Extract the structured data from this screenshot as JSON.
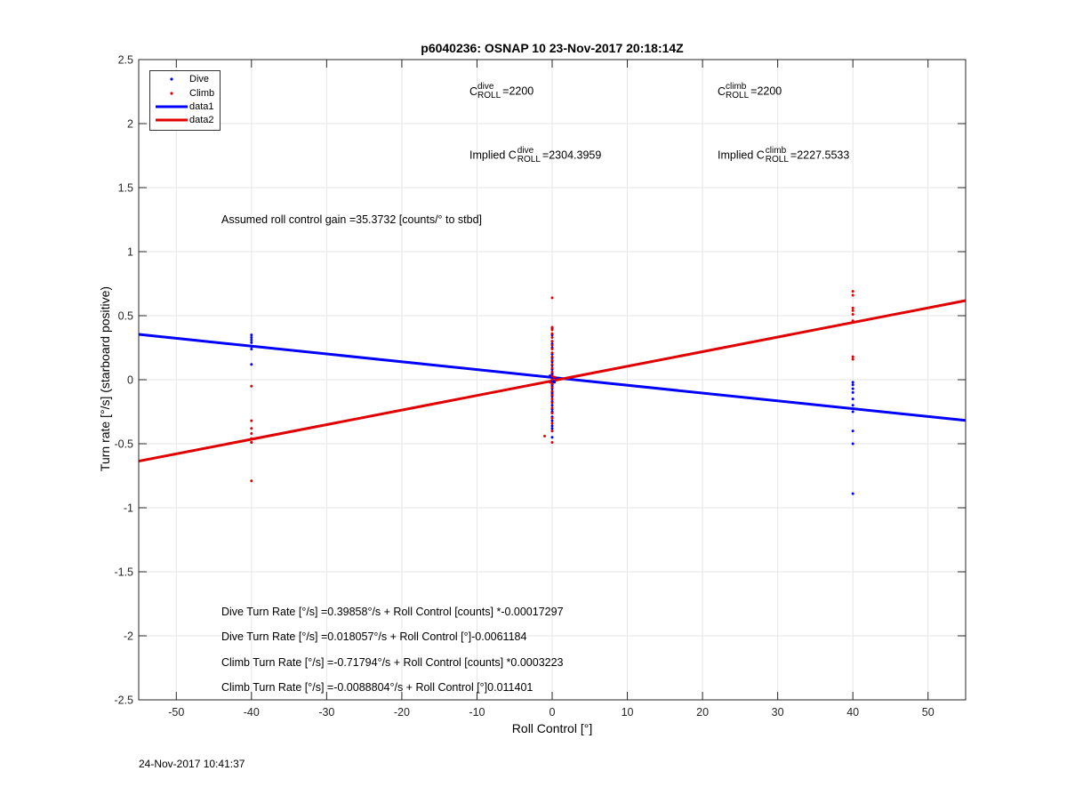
{
  "chart_data": {
    "type": "scatter",
    "title": "p6040236: OSNAP 10 23-Nov-2017 20:18:14Z",
    "xlabel": "Roll Control [°]",
    "ylabel": "Turn rate [°/s] (starboard positive)",
    "xlim": [
      -55,
      55
    ],
    "ylim": [
      -2.5,
      2.5
    ],
    "xticks": [
      -50,
      -40,
      -30,
      -20,
      -10,
      0,
      10,
      20,
      30,
      40,
      50
    ],
    "yticks": [
      -2.5,
      -2,
      -1.5,
      -1,
      -0.5,
      0,
      0.5,
      1,
      1.5,
      2,
      2.5
    ],
    "grid": true,
    "legend_location": "top-left",
    "series": [
      {
        "name": "Dive",
        "kind": "points",
        "color": "#0000ff",
        "x": [
          -40,
          -40,
          -40,
          -40,
          -40,
          -40,
          -40,
          -40,
          0,
          0,
          0,
          0,
          0,
          0,
          0,
          0,
          0,
          0,
          0,
          0,
          0,
          0,
          0,
          0,
          0,
          0,
          0,
          0,
          0,
          0,
          0,
          0,
          0,
          0,
          0,
          0,
          0,
          0,
          0,
          0,
          0,
          0,
          0,
          0,
          0,
          0,
          0,
          -0.2,
          0.2,
          -0.3,
          0.3,
          40,
          40,
          40,
          40,
          40,
          40,
          40,
          40,
          40,
          40
        ],
        "y": [
          0.35,
          0.33,
          0.31,
          0.29,
          0.26,
          0.24,
          0.12,
          -0.49,
          0.4,
          0.35,
          0.3,
          0.25,
          0.2,
          0.17,
          0.14,
          0.11,
          0.08,
          0.06,
          0.04,
          0.02,
          0.01,
          0,
          -0.01,
          -0.02,
          -0.03,
          -0.05,
          -0.07,
          -0.09,
          -0.11,
          -0.13,
          -0.15,
          -0.17,
          -0.2,
          -0.23,
          -0.26,
          -0.29,
          -0.32,
          -0.36,
          -0.4,
          -0.45,
          0.05,
          -0.04,
          0.15,
          -0.1,
          0.28,
          -0.25,
          -0.38,
          0.02,
          -0.01,
          0.03,
          -0.02,
          -0.02,
          -0.04,
          -0.07,
          -0.1,
          -0.15,
          -0.2,
          -0.25,
          -0.4,
          -0.5,
          -0.89
        ]
      },
      {
        "name": "Climb",
        "kind": "points",
        "color": "#e00000",
        "x": [
          -40,
          -40,
          -40,
          -40,
          -40,
          -40,
          -40,
          0,
          0,
          0,
          0,
          0,
          0,
          0,
          0,
          0,
          0,
          0,
          0,
          0,
          0,
          0,
          0,
          0,
          0,
          0,
          0,
          0,
          0,
          0,
          0,
          0,
          0,
          0,
          0,
          -1,
          0.3,
          -0.3,
          40,
          40,
          40,
          40,
          40,
          40,
          40,
          40
        ],
        "y": [
          -0.05,
          -0.32,
          -0.38,
          -0.42,
          -0.46,
          -0.49,
          -0.79,
          0.64,
          0.41,
          0.39,
          0.36,
          0.33,
          0.3,
          0.27,
          0.24,
          0.21,
          0.18,
          0.15,
          0.12,
          0.09,
          0.06,
          0.03,
          0,
          -0.03,
          -0.06,
          -0.09,
          -0.12,
          -0.15,
          -0.18,
          -0.22,
          -0.26,
          -0.3,
          -0.34,
          -0.4,
          -0.49,
          -0.44,
          0.02,
          -0.02,
          0.69,
          0.66,
          0.56,
          0.54,
          0.51,
          0.46,
          0.18,
          0.16
        ]
      },
      {
        "name": "data1",
        "kind": "line",
        "color": "#0000ff",
        "x": [
          -55,
          55
        ],
        "y": [
          0.354,
          -0.318
        ]
      },
      {
        "name": "data2",
        "kind": "line",
        "color": "#e00000",
        "x": [
          -55,
          55
        ],
        "y": [
          -0.636,
          0.618
        ]
      }
    ],
    "annotations": {
      "c_dive_label": "C",
      "c_dive_sup": "dive",
      "c_dive_sub": "ROLL",
      "c_dive_value": "=2200",
      "c_climb_label": "C",
      "c_climb_sup": "climb",
      "c_climb_sub": "ROLL",
      "c_climb_value": "=2200",
      "implied_dive_prefix": "Implied C",
      "implied_dive_sup": "dive",
      "implied_dive_sub": "ROLL",
      "implied_dive_value": "=2304.3959",
      "implied_climb_prefix": "Implied C",
      "implied_climb_sup": "climb",
      "implied_climb_sub": "ROLL",
      "implied_climb_value": "=2227.5533",
      "gain": "Assumed roll control gain =35.3732 [counts/° to stbd]",
      "eq1": "Dive Turn Rate [°/s] =0.39858°/s + Roll Control [counts] *-0.00017297",
      "eq2": "Dive Turn Rate [°/s] =0.018057°/s + Roll Control [°]-0.0061184",
      "eq3": "Climb Turn Rate [°/s] =-0.71794°/s + Roll Control [counts] *0.0003223",
      "eq4": "Climb Turn Rate [°/s] =-0.0088804°/s + Roll Control [°]0.011401"
    }
  },
  "footer_timestamp": "24-Nov-2017 10:41:37"
}
